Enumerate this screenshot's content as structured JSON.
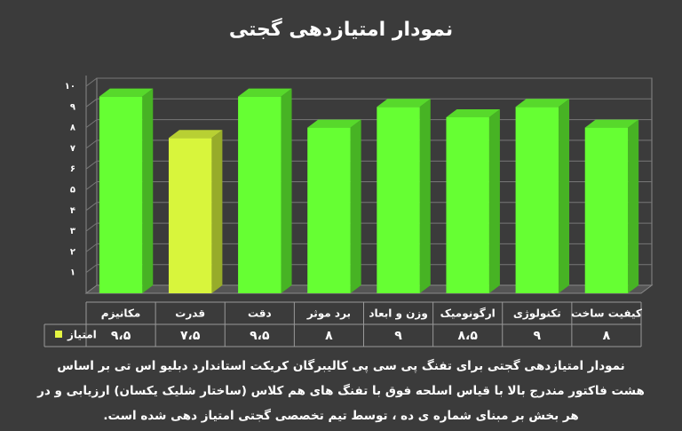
{
  "chart_data": {
    "type": "bar3d",
    "title": "نمودار امتیازدهی گجتی",
    "categories": [
      "مکانیزم",
      "قدرت",
      "دقت",
      "برد موثر",
      "وزن و ابعاد",
      "ارگونومیک",
      "تکنولوژی",
      "کیفیت ساخت"
    ],
    "series": [
      {
        "name": "امتیاز",
        "color": "#e4f542",
        "values": [
          9.5,
          7.5,
          9.5,
          8,
          9,
          8.5,
          9,
          8
        ],
        "value_labels": [
          "۹،۵",
          "۷،۵",
          "۹،۵",
          "۸",
          "۹",
          "۸،۵",
          "۹",
          "۸"
        ],
        "point_colors": [
          "#66ff33",
          "#d8f53c",
          "#66ff33",
          "#66ff33",
          "#66ff33",
          "#66ff33",
          "#66ff33",
          "#66ff33"
        ]
      }
    ],
    "ylim": [
      0,
      10
    ],
    "yticks": [
      {
        "value": 1,
        "label": "۱"
      },
      {
        "value": 2,
        "label": "۲"
      },
      {
        "value": 3,
        "label": "۳"
      },
      {
        "value": 4,
        "label": "۴"
      },
      {
        "value": 5,
        "label": "۵"
      },
      {
        "value": 6,
        "label": "۶"
      },
      {
        "value": 7,
        "label": "۷"
      },
      {
        "value": 8,
        "label": "۸"
      },
      {
        "value": 9,
        "label": "۹"
      },
      {
        "value": 10,
        "label": "۱۰"
      }
    ],
    "grid": true,
    "caption": [
      "نمودار امتیازدهی گجتی برای تفنگ پی سی پی  کالیبرگان کریکت استاندارد دبلیو اس تی بر اساس",
      "هشت فاکتور مندرج بالا با قیاس اسلحه فوق با تفنگ های هم کلاس (ساختار شلیک یکسان) ارزیابی و در",
      "هر بخش بر مبنای شماره ی ده ، توسط تیم تخصصی گجتی امتیاز دهی شده است."
    ]
  }
}
